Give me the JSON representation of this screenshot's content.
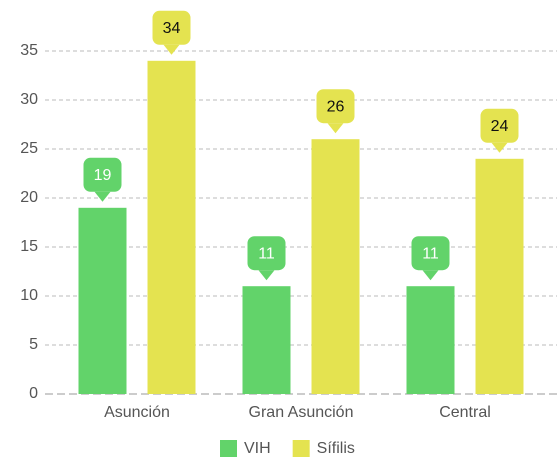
{
  "chart_data": {
    "type": "bar",
    "categories": [
      "Asunción",
      "Gran Asunción",
      "Central"
    ],
    "series": [
      {
        "name": "VIH",
        "color": "#62d36a",
        "values": [
          19,
          11,
          11
        ]
      },
      {
        "name": "Sífilis",
        "color": "#e4e350",
        "values": [
          34,
          26,
          24
        ]
      }
    ],
    "ylim": [
      0,
      35
    ],
    "yticks": [
      0,
      5,
      10,
      15,
      20,
      25,
      30,
      35
    ],
    "grid": true,
    "legend": "bottom"
  }
}
